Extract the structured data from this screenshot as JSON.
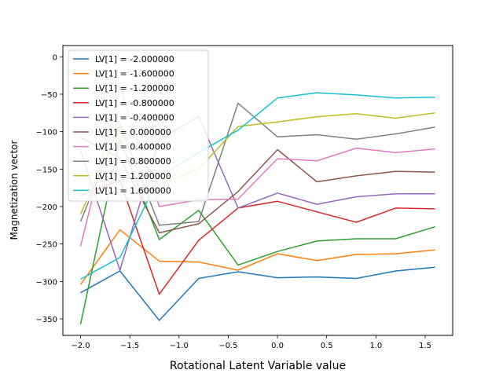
{
  "chart_data": {
    "type": "line",
    "xlabel": "Rotational Latent Variable value",
    "ylabel": "Magnetization vector",
    "x": [
      -2.0,
      -1.6,
      -1.2,
      -0.8,
      -0.4,
      0.0,
      0.4,
      0.8,
      1.2,
      1.6
    ],
    "xlim": [
      -2.18,
      1.78
    ],
    "ylim": [
      -372,
      15
    ],
    "xticks": [
      -2.0,
      -1.5,
      -1.0,
      -0.5,
      0.0,
      0.5,
      1.0,
      1.5
    ],
    "xtick_labels": [
      "−2.0",
      "−1.5",
      "−1.0",
      "−0.5",
      "0.0",
      "0.5",
      "1.0",
      "1.5"
    ],
    "yticks": [
      0,
      -50,
      -100,
      -150,
      -200,
      -250,
      -300,
      -350
    ],
    "ytick_labels": [
      "0",
      "−50",
      "−100",
      "−150",
      "−200",
      "−250",
      "−300",
      "−350"
    ],
    "grid": false,
    "legend_position": "top-left",
    "series": [
      {
        "name": "LV[1] = -2.000000",
        "color": "#1f77b4",
        "values": [
          -315,
          -286,
          -352,
          -296,
          -287,
          -295,
          -294,
          -296,
          -286,
          -281
        ]
      },
      {
        "name": "LV[1] = -1.600000",
        "color": "#ff7f0e",
        "values": [
          -304,
          -231,
          -273,
          -274,
          -285,
          -263,
          -272,
          -264,
          -263,
          -258
        ]
      },
      {
        "name": "LV[1] = -1.200000",
        "color": "#2ca02c",
        "values": [
          -357,
          -110,
          -244,
          -205,
          -278,
          -260,
          -246,
          -243,
          -243,
          -227
        ]
      },
      {
        "name": "LV[1] = -0.800000",
        "color": "#d62728",
        "values": [
          -185,
          -165,
          -317,
          -245,
          -202,
          -193,
          -207,
          -221,
          -202,
          -203
        ]
      },
      {
        "name": "LV[1] = -0.400000",
        "color": "#9467bd",
        "values": [
          -125,
          -285,
          -110,
          -80,
          -202,
          -182,
          -197,
          -187,
          -183,
          -183
        ]
      },
      {
        "name": "LV[1] = 0.000000",
        "color": "#8c564b",
        "values": [
          -108,
          -135,
          -235,
          -223,
          -180,
          -124,
          -167,
          -159,
          -153,
          -154
        ]
      },
      {
        "name": "LV[1] = 0.400000",
        "color": "#e377c2",
        "values": [
          -253,
          -40,
          -200,
          -191,
          -190,
          -136,
          -139,
          -122,
          -128,
          -123
        ]
      },
      {
        "name": "LV[1] = 0.800000",
        "color": "#7f7f7f",
        "values": [
          -220,
          -90,
          -225,
          -220,
          -62,
          -107,
          -104,
          -110,
          -103,
          -94
        ]
      },
      {
        "name": "LV[1] = 1.200000",
        "color": "#bcbd22",
        "values": [
          -210,
          -95,
          -170,
          -150,
          -93,
          -87,
          -80,
          -76,
          -82,
          -75
        ]
      },
      {
        "name": "LV[1] = 1.600000",
        "color": "#17becf",
        "values": [
          -297,
          -268,
          -160,
          -128,
          -98,
          -55,
          -48,
          -51,
          -55,
          -54
        ]
      }
    ]
  }
}
